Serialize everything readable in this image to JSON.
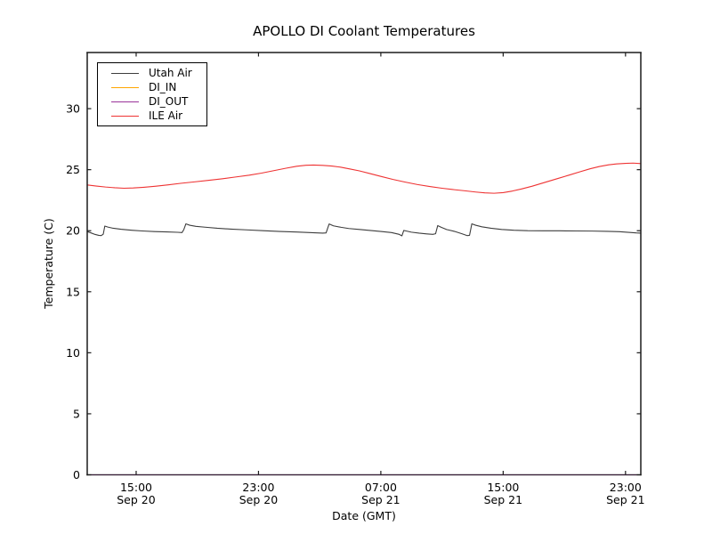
{
  "chart_data": {
    "type": "line",
    "title": "APOLLO DI Coolant Temperatures",
    "xlabel": "Date (GMT)",
    "ylabel": "Temperature (C)",
    "grid": false,
    "ylim": [
      0,
      34.6
    ],
    "xlim_hours": [
      11.8,
      48.0
    ],
    "x_unit": "hours since Sep 20 00:00 GMT",
    "yticks": [
      0,
      5,
      10,
      15,
      20,
      25,
      30
    ],
    "xticks": [
      {
        "hour": 15,
        "time": "15:00",
        "date": "Sep 20"
      },
      {
        "hour": 23,
        "time": "23:00",
        "date": "Sep 20"
      },
      {
        "hour": 31,
        "time": "07:00",
        "date": "Sep 21"
      },
      {
        "hour": 39,
        "time": "15:00",
        "date": "Sep 21"
      },
      {
        "hour": 47,
        "time": "23:00",
        "date": "Sep 21"
      }
    ],
    "legend": {
      "position": "upper left"
    },
    "series": [
      {
        "name": "Utah Air",
        "color": "#3d3d3d",
        "points": [
          [
            11.8,
            19.93
          ],
          [
            12.05,
            19.82
          ],
          [
            12.3,
            19.7
          ],
          [
            12.55,
            19.62
          ],
          [
            12.72,
            19.6
          ],
          [
            12.85,
            19.72
          ],
          [
            12.95,
            20.38
          ],
          [
            13.15,
            20.3
          ],
          [
            13.5,
            20.2
          ],
          [
            14.0,
            20.12
          ],
          [
            14.7,
            20.04
          ],
          [
            15.4,
            19.98
          ],
          [
            16.2,
            19.93
          ],
          [
            17.0,
            19.9
          ],
          [
            17.7,
            19.87
          ],
          [
            18.0,
            19.85
          ],
          [
            18.12,
            20.1
          ],
          [
            18.25,
            20.56
          ],
          [
            18.5,
            20.45
          ],
          [
            18.9,
            20.36
          ],
          [
            19.5,
            20.29
          ],
          [
            20.3,
            20.2
          ],
          [
            21.2,
            20.13
          ],
          [
            22.2,
            20.07
          ],
          [
            23.3,
            20.0
          ],
          [
            24.4,
            19.94
          ],
          [
            25.5,
            19.89
          ],
          [
            26.5,
            19.84
          ],
          [
            27.2,
            19.8
          ],
          [
            27.42,
            19.82
          ],
          [
            27.55,
            20.3
          ],
          [
            27.62,
            20.55
          ],
          [
            27.9,
            20.4
          ],
          [
            28.4,
            20.28
          ],
          [
            28.9,
            20.18
          ],
          [
            29.6,
            20.1
          ],
          [
            30.3,
            20.02
          ],
          [
            31.0,
            19.94
          ],
          [
            31.7,
            19.85
          ],
          [
            32.2,
            19.7
          ],
          [
            32.38,
            19.58
          ],
          [
            32.5,
            20.02
          ],
          [
            32.65,
            19.98
          ],
          [
            33.0,
            19.88
          ],
          [
            33.5,
            19.8
          ],
          [
            34.0,
            19.74
          ],
          [
            34.4,
            19.7
          ],
          [
            34.58,
            19.75
          ],
          [
            34.72,
            20.42
          ],
          [
            34.95,
            20.28
          ],
          [
            35.3,
            20.1
          ],
          [
            35.8,
            19.95
          ],
          [
            36.3,
            19.75
          ],
          [
            36.65,
            19.6
          ],
          [
            36.8,
            19.62
          ],
          [
            36.95,
            20.56
          ],
          [
            37.2,
            20.45
          ],
          [
            37.6,
            20.32
          ],
          [
            38.2,
            20.2
          ],
          [
            38.9,
            20.1
          ],
          [
            39.7,
            20.04
          ],
          [
            40.6,
            20.0
          ],
          [
            41.6,
            19.99
          ],
          [
            42.7,
            19.99
          ],
          [
            43.8,
            19.98
          ],
          [
            44.8,
            19.97
          ],
          [
            45.8,
            19.95
          ],
          [
            46.6,
            19.92
          ],
          [
            47.3,
            19.86
          ],
          [
            47.7,
            19.82
          ],
          [
            48.0,
            19.8
          ]
        ]
      },
      {
        "name": "DI_IN",
        "color": "#ffa500",
        "points": [
          [
            11.8,
            0
          ],
          [
            48.0,
            0
          ]
        ]
      },
      {
        "name": "DI_OUT",
        "color": "#993399",
        "points": [
          [
            11.8,
            0
          ],
          [
            48.0,
            0
          ]
        ]
      },
      {
        "name": "ILE Air",
        "color": "#ee3333",
        "points": [
          [
            11.8,
            23.75
          ],
          [
            12.4,
            23.66
          ],
          [
            13.0,
            23.58
          ],
          [
            13.6,
            23.52
          ],
          [
            14.2,
            23.48
          ],
          [
            14.8,
            23.5
          ],
          [
            15.5,
            23.56
          ],
          [
            16.3,
            23.65
          ],
          [
            17.1,
            23.76
          ],
          [
            17.9,
            23.88
          ],
          [
            18.8,
            24.0
          ],
          [
            19.7,
            24.12
          ],
          [
            20.6,
            24.25
          ],
          [
            21.5,
            24.4
          ],
          [
            22.4,
            24.55
          ],
          [
            23.2,
            24.72
          ],
          [
            24.0,
            24.92
          ],
          [
            24.8,
            25.12
          ],
          [
            25.5,
            25.28
          ],
          [
            26.1,
            25.36
          ],
          [
            26.6,
            25.38
          ],
          [
            27.2,
            25.35
          ],
          [
            27.8,
            25.3
          ],
          [
            28.4,
            25.2
          ],
          [
            29.0,
            25.05
          ],
          [
            29.6,
            24.9
          ],
          [
            30.3,
            24.68
          ],
          [
            31.0,
            24.45
          ],
          [
            31.8,
            24.2
          ],
          [
            32.6,
            23.98
          ],
          [
            33.4,
            23.78
          ],
          [
            34.2,
            23.62
          ],
          [
            35.0,
            23.48
          ],
          [
            35.8,
            23.36
          ],
          [
            36.5,
            23.27
          ],
          [
            37.2,
            23.17
          ],
          [
            37.8,
            23.1
          ],
          [
            38.4,
            23.07
          ],
          [
            39.0,
            23.12
          ],
          [
            39.6,
            23.25
          ],
          [
            40.2,
            23.42
          ],
          [
            40.9,
            23.65
          ],
          [
            41.7,
            23.95
          ],
          [
            42.5,
            24.25
          ],
          [
            43.3,
            24.55
          ],
          [
            44.0,
            24.82
          ],
          [
            44.7,
            25.08
          ],
          [
            45.3,
            25.26
          ],
          [
            45.9,
            25.4
          ],
          [
            46.4,
            25.47
          ],
          [
            47.0,
            25.52
          ],
          [
            47.5,
            25.54
          ],
          [
            48.0,
            25.5
          ]
        ]
      }
    ]
  }
}
